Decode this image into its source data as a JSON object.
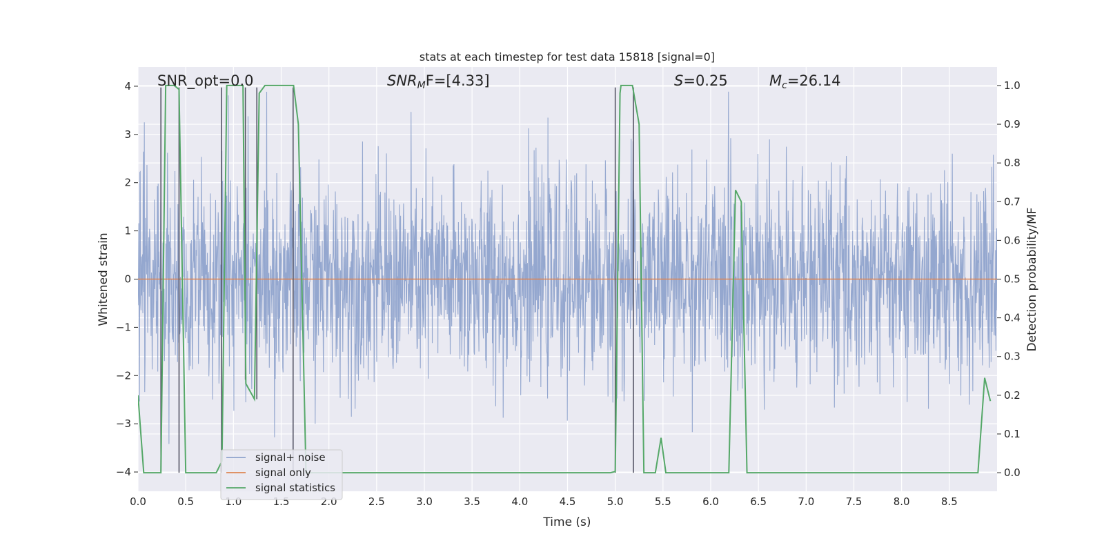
{
  "chart_data": {
    "type": "line",
    "title": "stats at each timestep for test data 15818 [signal=0]",
    "xlabel": "Time (s)",
    "ylabel_left": "Whitened strain",
    "ylabel_right": "Detection probability/MF",
    "xlim": [
      0.0,
      9.0
    ],
    "ylim_left": [
      -4.4,
      4.4
    ],
    "ylim_right": [
      -0.048,
      1.048
    ],
    "xticks": [
      "0.0",
      "0.5",
      "1.0",
      "1.5",
      "2.0",
      "2.5",
      "3.0",
      "3.5",
      "4.0",
      "4.5",
      "5.0",
      "5.5",
      "6.0",
      "6.5",
      "7.0",
      "7.5",
      "8.0",
      "8.5"
    ],
    "xtick_values": [
      0.0,
      0.5,
      1.0,
      1.5,
      2.0,
      2.5,
      3.0,
      3.5,
      4.0,
      4.5,
      5.0,
      5.5,
      6.0,
      6.5,
      7.0,
      7.5,
      8.0,
      8.5
    ],
    "yticks_left": [
      "4",
      "3",
      "2",
      "1",
      "0",
      "−1",
      "−2",
      "−3",
      "−4"
    ],
    "ytick_values_left": [
      4,
      3,
      2,
      1,
      0,
      -1,
      -2,
      -3,
      -4
    ],
    "yticks_right": [
      "1.0",
      "0.9",
      "0.8",
      "0.7",
      "0.6",
      "0.5",
      "0.4",
      "0.3",
      "0.2",
      "0.1",
      "0.0"
    ],
    "ytick_values_right": [
      1.0,
      0.9,
      0.8,
      0.7,
      0.6,
      0.5,
      0.4,
      0.3,
      0.2,
      0.1,
      0.0
    ],
    "annotations": {
      "snr_opt": "SNR_opt=0.0",
      "snr_mf_base": "SNR",
      "snr_mf_sub": "M",
      "snr_mf_rest": "F=[4.33]",
      "s_var": "S",
      "s_val": "=0.25",
      "mc_base": "M",
      "mc_sub": "c",
      "mc_val": "=26.14"
    },
    "legend": [
      {
        "label": "signal+ noise",
        "color": "#8fa3cc"
      },
      {
        "label": "signal only",
        "color": "#dd8452"
      },
      {
        "label": "signal statistics",
        "color": "#55a868"
      }
    ],
    "legend_position": "lower-left",
    "series": [
      {
        "name": "signal+ noise",
        "axis": "left",
        "style": "dense-noise",
        "color": "#8fa3cc",
        "x_range": [
          0.0,
          9.0
        ],
        "samples": 2304,
        "envelope": {
          "typical_min": -1.6,
          "typical_max": 1.6,
          "peak_min": -3.9,
          "peak_max": 4.0
        }
      },
      {
        "name": "signal only",
        "axis": "left",
        "color": "#dd8452",
        "x": [
          0.0,
          9.0
        ],
        "y": [
          0.0,
          0.0
        ]
      },
      {
        "name": "signal statistics",
        "axis": "right",
        "color": "#55a868",
        "x": [
          0.0,
          0.06,
          0.24,
          0.29,
          0.38,
          0.43,
          0.5,
          0.55,
          0.63,
          0.82,
          0.88,
          0.93,
          0.97,
          1.1,
          1.13,
          1.22,
          1.27,
          1.33,
          1.38,
          1.45,
          1.63,
          1.68,
          1.76,
          1.9,
          3.0,
          3.2,
          4.6,
          4.95,
          5.0,
          5.05,
          5.06,
          5.18,
          5.25,
          5.3,
          5.36,
          5.42,
          5.48,
          5.53,
          5.65,
          6.19,
          6.26,
          6.32,
          6.38,
          8.8,
          8.87,
          8.93
        ],
        "y": [
          0.2,
          0.0,
          0.0,
          1.0,
          1.0,
          0.99,
          0.0,
          0.0,
          0.0,
          0.0,
          0.03,
          1.0,
          1.0,
          1.0,
          0.23,
          0.19,
          0.98,
          1.0,
          1.0,
          1.0,
          1.0,
          0.9,
          0.0,
          0.0,
          0.0,
          0.0,
          0.0,
          0.0,
          0.003,
          0.98,
          1.0,
          1.0,
          0.9,
          0.0,
          0.0,
          0.0,
          0.09,
          0.0,
          0.0,
          0.0,
          0.73,
          0.7,
          0.0,
          0.0,
          0.245,
          0.185
        ]
      }
    ],
    "vertical_markers": {
      "color": "#555566",
      "lines": [
        {
          "x": 0.24,
          "y_top": 0.995,
          "y_bottom": 0.0
        },
        {
          "x": 0.43,
          "y_top": 0.995,
          "y_bottom": 0.0
        },
        {
          "x": 0.875,
          "y_top": 0.995,
          "y_bottom": 0.0
        },
        {
          "x": 1.125,
          "y_top": 0.995,
          "y_bottom": 0.24
        },
        {
          "x": 1.245,
          "y_top": 0.995,
          "y_bottom": 0.19
        },
        {
          "x": 1.625,
          "y_top": 0.995,
          "y_bottom": 0.0
        },
        {
          "x": 5.0,
          "y_top": 0.995,
          "y_bottom": 0.0
        },
        {
          "x": 5.19,
          "y_top": 0.995,
          "y_bottom": 0.0
        }
      ]
    }
  }
}
